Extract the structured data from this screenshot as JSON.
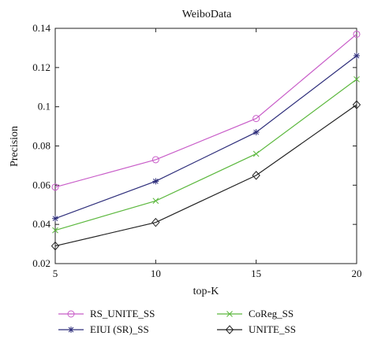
{
  "chart_data": {
    "type": "line",
    "title": "WeiboData",
    "xlabel": "top-K",
    "ylabel": "Precision",
    "x": [
      5,
      10,
      15,
      20
    ],
    "x_ticks": [
      "5",
      "10",
      "15",
      "20"
    ],
    "xlim": [
      5,
      20
    ],
    "ylim": [
      0.02,
      0.14
    ],
    "y_ticks": [
      {
        "value": 0.02,
        "label": "0.02"
      },
      {
        "value": 0.04,
        "label": "0.04"
      },
      {
        "value": 0.06,
        "label": "0.06"
      },
      {
        "value": 0.08,
        "label": "0.08"
      },
      {
        "value": 0.1,
        "label": "0.1"
      },
      {
        "value": 0.12,
        "label": "0.12"
      },
      {
        "value": 0.14,
        "label": "0.14"
      }
    ],
    "grid": false,
    "legend_position": "bottom",
    "series": [
      {
        "name": "RS_UNITE_SS",
        "color": "#c85cc8",
        "marker": "circle",
        "values": [
          0.059,
          0.073,
          0.094,
          0.137
        ]
      },
      {
        "name": "EIUI (SR)_SS",
        "color": "#2d2d7a",
        "marker": "star",
        "values": [
          0.043,
          0.062,
          0.087,
          0.126
        ]
      },
      {
        "name": "CoReg_SS",
        "color": "#5cb83e",
        "marker": "x",
        "values": [
          0.037,
          0.052,
          0.076,
          0.114
        ]
      },
      {
        "name": "UNITE_SS",
        "color": "#222222",
        "marker": "diamond",
        "values": [
          0.029,
          0.041,
          0.065,
          0.101
        ]
      }
    ]
  }
}
